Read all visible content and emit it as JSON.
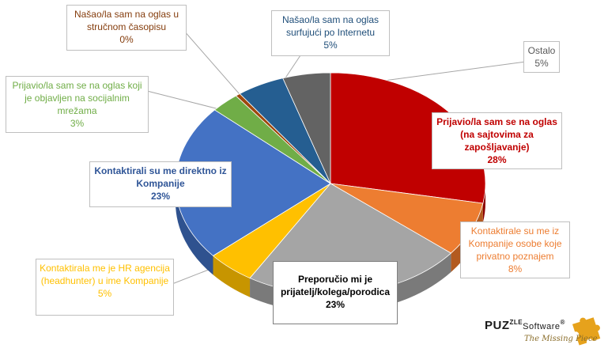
{
  "chart_data": {
    "type": "pie",
    "title": "",
    "slices": [
      {
        "label": "Prijavio/la sam se na oglas (na sajtovima za zapošljavanje)",
        "value": 28,
        "pct_label": "28%",
        "color": "#c00000",
        "side": "#8b0000"
      },
      {
        "label": "Kontaktirale su me iz Kompanije osobe koje privatno poznajem",
        "value": 8,
        "pct_label": "8%",
        "color": "#ed7d31",
        "side": "#b35a1f"
      },
      {
        "label": "Preporučio mi je prijatelj/kolega/porodica",
        "value": 23,
        "pct_label": "23%",
        "color": "#a5a5a5",
        "side": "#7a7a7a"
      },
      {
        "label": "Kontaktirala me je HR agencija (headhunter) u ime Kompanije",
        "value": 5,
        "pct_label": "5%",
        "color": "#ffc000",
        "side": "#c79500"
      },
      {
        "label": "Kontaktirali su me direktno iz Kompanije",
        "value": 23,
        "pct_label": "23%",
        "color": "#4472c4",
        "side": "#2f528f"
      },
      {
        "label": "Prijavio/la sam se na oglas koji je objavljen na socijalnim mrežama",
        "value": 3,
        "pct_label": "3%",
        "color": "#70ad47",
        "side": "#4e7a30"
      },
      {
        "label": "Našao/la sam na oglas u stručnom časopisu",
        "value": 0,
        "pct_label": "0%",
        "color": "#9e480e",
        "side": "#6e3209"
      },
      {
        "label": "Našao/la sam na oglas surfujući po Internetu",
        "value": 5,
        "pct_label": "5%",
        "color": "#255e91",
        "side": "#1a4468"
      },
      {
        "label": "Ostalo",
        "value": 5,
        "pct_label": "5%",
        "color": "#636363",
        "side": "#404040"
      }
    ],
    "legend": "none"
  },
  "labels": [
    {
      "text": "Prijavio/la sam se na oglas (na sajtovima za zapošljavanje)",
      "pct": "28%",
      "color": "#c00000"
    },
    {
      "text": "Kontaktirale su me iz Kompanije osobe koje privatno poznajem",
      "pct": "8%",
      "color": "#ed7d31"
    },
    {
      "text": "Preporučio mi je prijatelj/kolega/porodica",
      "pct": "23%",
      "color": "#000000"
    },
    {
      "text": "Kontaktirala me je HR agencija (headhunter) u ime Kompanije",
      "pct": "5%",
      "color": "#ffc000"
    },
    {
      "text": "Kontaktirali su me direktno iz Kompanije",
      "pct": "23%",
      "color": "#2f5597"
    },
    {
      "text": "Prijavio/la sam se na oglas koji je objavljen na socijalnim mrežama",
      "pct": "3%",
      "color": "#70ad47"
    },
    {
      "text": "Našao/la sam na oglas u stručnom časopisu",
      "pct": "0%",
      "color": "#843c0c"
    },
    {
      "text": "Našao/la sam na oglas surfujući po Internetu",
      "pct": "5%",
      "color": "#1f4e79"
    },
    {
      "text": "Ostalo",
      "pct": "5%",
      "color": "#595959"
    }
  ],
  "logo": {
    "name": "PUZZLE Software",
    "brand": "PUZ",
    "brand_stacked": "ZLE",
    "brand_suffix": "Software",
    "trademark": "®",
    "tagline": "The Missing Piece"
  }
}
